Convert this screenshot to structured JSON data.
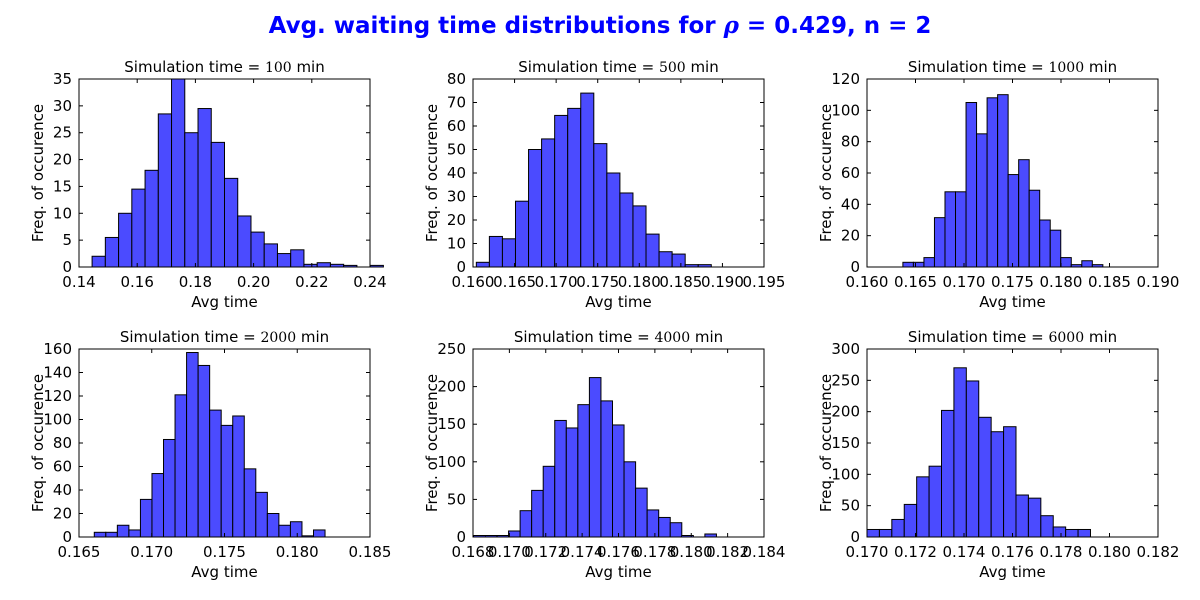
{
  "title": {
    "prefix": "Avg. waiting time distributions for ",
    "symbol": "ρ",
    "suffix": " = 0.429, n = 2",
    "color": "#0000ff"
  },
  "colors": {
    "bar": "#4b4bff",
    "bar_edge": "#000000",
    "axes": "#000000"
  },
  "chart_data": [
    {
      "type": "bar",
      "title_prefix": "Simulation time = ",
      "title_value": "100",
      "title_suffix": " min",
      "xlabel": "Avg time",
      "ylabel": "Freq. of occurence",
      "xlim": [
        0.14,
        0.24
      ],
      "ylim": [
        0,
        35
      ],
      "xticks": [
        0.14,
        0.16,
        0.18,
        0.2,
        0.22,
        0.24
      ],
      "xtick_labels": [
        "0.14",
        "0.16",
        "0.18",
        "0.20",
        "0.22",
        "0.24"
      ],
      "yticks": [
        0,
        5,
        10,
        15,
        20,
        25,
        30,
        35
      ],
      "bin_start": 0.1445,
      "bin_width": 0.00455,
      "values": [
        2,
        5.5,
        10,
        14.5,
        18,
        28.5,
        35,
        25,
        29.5,
        23.2,
        16.5,
        9.5,
        6.5,
        4.3,
        2.5,
        3.2,
        0.5,
        0.8,
        0.5,
        0.3,
        0,
        0.3
      ]
    },
    {
      "type": "bar",
      "title_prefix": "Simulation time = ",
      "title_value": "500",
      "title_suffix": " min",
      "xlabel": "Avg time",
      "ylabel": "Freq. of occurence",
      "xlim": [
        0.16,
        0.195
      ],
      "ylim": [
        0,
        80
      ],
      "xticks": [
        0.16,
        0.165,
        0.17,
        0.175,
        0.18,
        0.185,
        0.19,
        0.195
      ],
      "xtick_labels": [
        "0.160",
        "0.165",
        "0.170",
        "0.175",
        "0.180",
        "0.185",
        "0.190",
        "0.195"
      ],
      "yticks": [
        0,
        10,
        20,
        30,
        40,
        50,
        60,
        70,
        80
      ],
      "bin_start": 0.1604,
      "bin_width": 0.00157,
      "values": [
        2,
        13,
        12,
        28,
        50,
        54.5,
        64.5,
        67.5,
        74,
        52.5,
        40,
        31.5,
        26,
        14,
        6.5,
        5.5,
        1,
        1
      ]
    },
    {
      "type": "bar",
      "title_prefix": "Simulation time = ",
      "title_value": "1000",
      "title_suffix": " min",
      "xlabel": "Avg time",
      "ylabel": "Freq. of occurence",
      "xlim": [
        0.16,
        0.19
      ],
      "ylim": [
        0,
        120
      ],
      "xticks": [
        0.16,
        0.165,
        0.17,
        0.175,
        0.18,
        0.185,
        0.19
      ],
      "xtick_labels": [
        "0.160",
        "0.165",
        "0.170",
        "0.175",
        "0.180",
        "0.185",
        "0.190"
      ],
      "yticks": [
        0,
        20,
        40,
        60,
        80,
        100,
        120
      ],
      "bin_start": 0.1637,
      "bin_width": 0.001085,
      "values": [
        3,
        3,
        6,
        31.5,
        48,
        48,
        105,
        85,
        108,
        110,
        59,
        68.5,
        49,
        30,
        23.5,
        6,
        1.5,
        4,
        1.5
      ]
    },
    {
      "type": "bar",
      "title_prefix": "Simulation time = ",
      "title_value": "2000",
      "title_suffix": " min",
      "xlabel": "Avg time",
      "ylabel": "Freq. of occurence",
      "xlim": [
        0.165,
        0.185
      ],
      "ylim": [
        0,
        160
      ],
      "xticks": [
        0.165,
        0.17,
        0.175,
        0.18,
        0.185
      ],
      "xtick_labels": [
        "0.165",
        "0.170",
        "0.175",
        "0.180",
        "0.185"
      ],
      "yticks": [
        0,
        20,
        40,
        60,
        80,
        100,
        120,
        140,
        160
      ],
      "bin_start": 0.16605,
      "bin_width": 0.000793,
      "values": [
        4,
        4,
        10,
        6,
        32,
        54,
        83,
        121,
        157,
        146,
        108,
        95,
        103,
        58,
        38,
        20,
        10,
        13,
        1,
        6
      ]
    },
    {
      "type": "bar",
      "title_prefix": "Simulation time = ",
      "title_value": "4000",
      "title_suffix": " min",
      "xlabel": "Avg time",
      "ylabel": "Freq. of occurence",
      "xlim": [
        0.168,
        0.184
      ],
      "ylim": [
        0,
        250
      ],
      "xticks": [
        0.168,
        0.17,
        0.172,
        0.174,
        0.176,
        0.178,
        0.18,
        0.182,
        0.184
      ],
      "xtick_labels": [
        "0.168",
        "0.170",
        "0.172",
        "0.174",
        "0.176",
        "0.178",
        "0.180",
        "0.182",
        "0.184"
      ],
      "yticks": [
        0,
        50,
        100,
        150,
        200,
        250
      ],
      "bin_start": 0.16805,
      "bin_width": 0.000635,
      "values": [
        2,
        2,
        2,
        8,
        35,
        62,
        94,
        155,
        145,
        176,
        212,
        181,
        149,
        100,
        65,
        36,
        26,
        19,
        2,
        0,
        4
      ]
    },
    {
      "type": "bar",
      "title_prefix": "Simulation time = ",
      "title_value": "6000",
      "title_suffix": " min",
      "xlabel": "Avg time",
      "ylabel": "Freq. of occurence",
      "xlim": [
        0.17,
        0.182
      ],
      "ylim": [
        0,
        300
      ],
      "xticks": [
        0.17,
        0.172,
        0.174,
        0.176,
        0.178,
        0.18,
        0.182
      ],
      "xtick_labels": [
        "0.170",
        "0.172",
        "0.174",
        "0.176",
        "0.178",
        "0.180",
        "0.182"
      ],
      "yticks": [
        0,
        50,
        100,
        150,
        200,
        250,
        300
      ],
      "bin_start": 0.17,
      "bin_width": 0.000512,
      "values": [
        12,
        12,
        28,
        52,
        96,
        113,
        202,
        270,
        249,
        191,
        168,
        176,
        67,
        62,
        34,
        16,
        12,
        12
      ]
    }
  ]
}
